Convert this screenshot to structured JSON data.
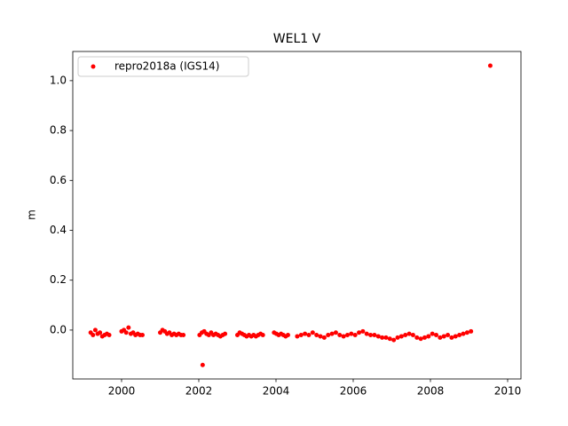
{
  "chart_data": {
    "type": "scatter",
    "title": "WEL1 V",
    "y_label": "m",
    "series": [
      {
        "name": "repro2018a (IGS14)",
        "color": "#ff0000",
        "x": [
          1999.2,
          1999.26,
          1999.32,
          1999.38,
          1999.44,
          1999.5,
          1999.56,
          1999.62,
          1999.68,
          2000.0,
          2000.06,
          2000.12,
          2000.18,
          2000.24,
          2000.3,
          2000.36,
          2000.42,
          2000.48,
          2000.54,
          2001.0,
          2001.06,
          2001.12,
          2001.18,
          2001.24,
          2001.3,
          2001.36,
          2001.42,
          2001.48,
          2001.54,
          2001.6,
          2002.02,
          2002.08,
          2002.1,
          2002.14,
          2002.2,
          2002.26,
          2002.32,
          2002.38,
          2002.44,
          2002.5,
          2002.56,
          2002.62,
          2002.68,
          2003.0,
          2003.06,
          2003.12,
          2003.18,
          2003.24,
          2003.3,
          2003.36,
          2003.42,
          2003.48,
          2003.54,
          2003.6,
          2003.66,
          2003.95,
          2004.01,
          2004.07,
          2004.13,
          2004.19,
          2004.25,
          2004.31,
          2004.55,
          2004.65,
          2004.75,
          2004.85,
          2004.95,
          2005.05,
          2005.15,
          2005.25,
          2005.35,
          2005.45,
          2005.55,
          2005.65,
          2005.75,
          2005.85,
          2005.95,
          2006.05,
          2006.15,
          2006.25,
          2006.35,
          2006.45,
          2006.55,
          2006.65,
          2006.75,
          2006.85,
          2006.95,
          2007.05,
          2007.15,
          2007.25,
          2007.35,
          2007.45,
          2007.55,
          2007.65,
          2007.75,
          2007.85,
          2007.95,
          2008.05,
          2008.15,
          2008.25,
          2008.35,
          2008.45,
          2008.55,
          2008.65,
          2008.75,
          2008.85,
          2008.95,
          2009.05,
          2009.55
        ],
        "values": [
          -0.01,
          -0.02,
          0.0,
          -0.015,
          -0.01,
          -0.025,
          -0.02,
          -0.015,
          -0.02,
          -0.005,
          0.0,
          -0.01,
          0.01,
          -0.015,
          -0.01,
          -0.02,
          -0.015,
          -0.02,
          -0.02,
          -0.01,
          0.0,
          -0.005,
          -0.015,
          -0.01,
          -0.02,
          -0.015,
          -0.02,
          -0.015,
          -0.02,
          -0.02,
          -0.02,
          -0.01,
          -0.14,
          -0.005,
          -0.015,
          -0.02,
          -0.01,
          -0.02,
          -0.015,
          -0.02,
          -0.025,
          -0.02,
          -0.015,
          -0.02,
          -0.01,
          -0.015,
          -0.02,
          -0.025,
          -0.02,
          -0.025,
          -0.02,
          -0.025,
          -0.02,
          -0.015,
          -0.02,
          -0.01,
          -0.015,
          -0.02,
          -0.015,
          -0.02,
          -0.025,
          -0.02,
          -0.025,
          -0.02,
          -0.015,
          -0.02,
          -0.01,
          -0.02,
          -0.025,
          -0.03,
          -0.02,
          -0.015,
          -0.01,
          -0.02,
          -0.025,
          -0.02,
          -0.015,
          -0.02,
          -0.01,
          -0.005,
          -0.015,
          -0.02,
          -0.02,
          -0.025,
          -0.03,
          -0.03,
          -0.035,
          -0.04,
          -0.03,
          -0.025,
          -0.02,
          -0.015,
          -0.02,
          -0.03,
          -0.035,
          -0.03,
          -0.025,
          -0.015,
          -0.02,
          -0.03,
          -0.025,
          -0.02,
          -0.03,
          -0.025,
          -0.02,
          -0.015,
          -0.01,
          -0.005,
          1.06
        ]
      }
    ],
    "xlim": [
      1998.736,
      2010.345
    ],
    "xticks": [
      2000,
      2002,
      2004,
      2006,
      2008,
      2010
    ],
    "ylim": [
      -0.196,
      1.117
    ],
    "yticks": [
      {
        "value": 0,
        "label": "0.0"
      },
      0.2,
      0.4,
      0.6,
      0.8,
      {
        "value": 1,
        "label": "1.0"
      }
    ],
    "legend": "upper left",
    "grid": false
  }
}
